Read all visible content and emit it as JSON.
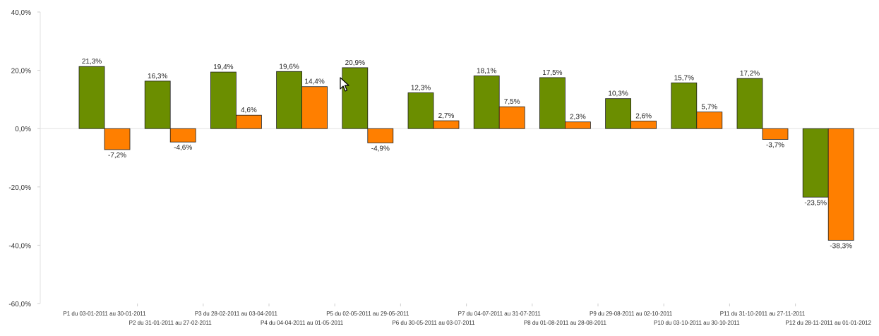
{
  "chart_data": {
    "type": "bar",
    "categories": [
      "P1  du 03-01-2011 au 30-01-2011",
      "P2  du 31-01-2011 au 27-02-2011",
      "P3  du 28-02-2011 au 03-04-2011",
      "P4  du 04-04-2011 au 01-05-2011",
      "P5  du 02-05-2011 au 29-05-2011",
      "P6  du 30-05-2011 au 03-07-2011",
      "P7  du 04-07-2011 au 31-07-2011",
      "P8  du 01-08-2011 au 28-08-2011",
      "P9  du 29-08-2011 au 02-10-2011",
      "P10  du 03-10-2011 au 30-10-2011",
      "P11  du 31-10-2011 au 27-11-2011",
      "P12  du 28-11-2011 au 01-01-2012"
    ],
    "series": [
      {
        "color": "#6b8e00",
        "values": [
          21.3,
          16.3,
          19.4,
          19.6,
          20.9,
          12.3,
          18.1,
          17.5,
          10.3,
          15.7,
          17.2,
          -23.5
        ],
        "labels": [
          "21,3%",
          "16,3%",
          "19,4%",
          "19,6%",
          "20,9%",
          "12,3%",
          "18,1%",
          "17,5%",
          "10,3%",
          "15,7%",
          "17,2%",
          "-23,5%"
        ]
      },
      {
        "color": "#ff7f00",
        "values": [
          -7.2,
          -4.6,
          4.6,
          14.4,
          -4.9,
          2.7,
          7.5,
          2.3,
          2.6,
          5.7,
          -3.7,
          -38.3
        ],
        "labels": [
          "-7,2%",
          "-4,6%",
          "4,6%",
          "14,4%",
          "-4,9%",
          "2,7%",
          "7,5%",
          "2,3%",
          "2,6%",
          "5,7%",
          "-3,7%",
          "-38,3%"
        ]
      }
    ],
    "ylim": [
      -60,
      40
    ],
    "yticks": [
      40,
      20,
      0,
      -20,
      -40,
      -60
    ],
    "ytick_labels": [
      "40,0%",
      "20,0%",
      "0,0%",
      "-20,0%",
      "-40,0%",
      "-60,0%"
    ],
    "grid": false,
    "title": "",
    "xlabel": "",
    "ylabel": ""
  }
}
